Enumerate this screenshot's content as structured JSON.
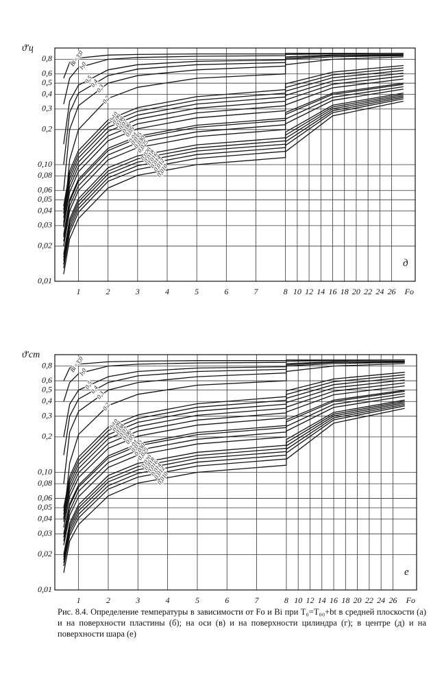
{
  "chart_data": [
    {
      "type": "line",
      "ylabel": "ϑ'ц",
      "xlabel": "Fo",
      "panel": "д",
      "yscale": "log",
      "grid": true,
      "color": "#111111",
      "xlim": [
        0.2,
        30
      ],
      "ylim": [
        0.01,
        1
      ],
      "xticks": [
        1,
        2,
        3,
        4,
        5,
        6,
        7,
        8,
        10,
        12,
        14,
        16,
        18,
        20,
        22,
        24,
        26
      ],
      "yticks": [
        {
          "value": 0.01,
          "label": "0,01"
        },
        {
          "value": 0.02,
          "label": "0,02"
        },
        {
          "value": 0.03,
          "label": "0,03"
        },
        {
          "value": 0.04,
          "label": "0,04"
        },
        {
          "value": 0.05,
          "label": "0,05"
        },
        {
          "value": 0.06,
          "label": "0,06"
        },
        {
          "value": 0.08,
          "label": "0,08"
        },
        {
          "value": 0.1,
          "label": "0,10"
        },
        {
          "value": 0.2,
          "label": "0,2"
        },
        {
          "value": 0.3,
          "label": "0,3"
        },
        {
          "value": 0.4,
          "label": "0,4"
        },
        {
          "value": 0.5,
          "label": "0,5"
        },
        {
          "value": 0.6,
          "label": "0,6"
        },
        {
          "value": 0.8,
          "label": "0,8"
        }
      ],
      "x": [
        0.5,
        0.7,
        1,
        2,
        3,
        5,
        8,
        8,
        16,
        28
      ],
      "series": [
        {
          "name": "Bi=3,0",
          "values": [
            0.55,
            0.75,
            0.82,
            0.87,
            0.88,
            0.89,
            0.89,
            0.9,
            0.9,
            0.9
          ]
        },
        {
          "name": "1,0",
          "values": [
            0.33,
            0.55,
            0.68,
            0.8,
            0.83,
            0.85,
            0.86,
            0.88,
            0.89,
            0.9
          ]
        },
        {
          "name": "0,5",
          "values": [
            0.15,
            0.35,
            0.48,
            0.65,
            0.72,
            0.77,
            0.79,
            0.84,
            0.87,
            0.88
          ]
        },
        {
          "name": "0,4",
          "values": [
            0.1,
            0.28,
            0.41,
            0.58,
            0.66,
            0.72,
            0.75,
            0.82,
            0.86,
            0.87
          ]
        },
        {
          "name": "0,3",
          "values": [
            0.06,
            0.2,
            0.32,
            0.5,
            0.58,
            0.65,
            0.7,
            0.8,
            0.84,
            0.86
          ]
        },
        {
          "name": "0,2",
          "values": [
            0.03,
            0.11,
            0.2,
            0.37,
            0.46,
            0.55,
            0.6,
            0.72,
            0.8,
            0.84
          ]
        },
        {
          "name": "0,10",
          "values": [
            0.044,
            0.088,
            0.132,
            0.242,
            0.308,
            0.383,
            0.44,
            0.493,
            0.622,
            0.708
          ]
        },
        {
          "name": "0,09",
          "values": [
            0.041,
            0.082,
            0.123,
            0.226,
            0.287,
            0.357,
            0.41,
            0.459,
            0.589,
            0.675
          ]
        },
        {
          "name": "0,08",
          "values": [
            0.038,
            0.076,
            0.114,
            0.209,
            0.266,
            0.331,
            0.38,
            0.426,
            0.556,
            0.642
          ]
        },
        {
          "name": "0,07",
          "values": [
            0.035,
            0.07,
            0.105,
            0.193,
            0.245,
            0.305,
            0.35,
            0.392,
            0.522,
            0.609
          ]
        },
        {
          "name": "0,06",
          "values": [
            0.032,
            0.064,
            0.096,
            0.176,
            0.224,
            0.278,
            0.32,
            0.358,
            0.489,
            0.576
          ]
        },
        {
          "name": "0,05",
          "values": [
            0.029,
            0.058,
            0.087,
            0.16,
            0.203,
            0.252,
            0.29,
            0.325,
            0.456,
            0.543
          ]
        },
        {
          "name": "0,04",
          "values": [
            0.025,
            0.05,
            0.075,
            0.138,
            0.175,
            0.218,
            0.25,
            0.28,
            0.411,
            0.499
          ]
        },
        {
          "name": "0,035",
          "values": [
            0.024,
            0.048,
            0.072,
            0.132,
            0.168,
            0.209,
            0.24,
            0.269,
            0.4,
            0.488
          ]
        },
        {
          "name": "0,030",
          "values": [
            0.022,
            0.044,
            0.066,
            0.121,
            0.154,
            0.191,
            0.22,
            0.246,
            0.378,
            0.466
          ]
        },
        {
          "name": "0,025",
          "values": [
            0.02,
            0.04,
            0.06,
            0.11,
            0.14,
            0.174,
            0.2,
            0.224,
            0.356,
            0.444
          ]
        },
        {
          "name": "0,020",
          "values": [
            0.017,
            0.034,
            0.051,
            0.094,
            0.119,
            0.148,
            0.17,
            0.19,
            0.323,
            0.411
          ]
        },
        {
          "name": "0,018",
          "values": [
            0.016,
            0.032,
            0.048,
            0.088,
            0.112,
            0.139,
            0.16,
            0.179,
            0.312,
            0.4
          ]
        },
        {
          "name": "0,016",
          "values": [
            0.015,
            0.03,
            0.045,
            0.083,
            0.105,
            0.131,
            0.15,
            0.168,
            0.301,
            0.389
          ]
        },
        {
          "name": "0,014",
          "values": [
            0.014,
            0.028,
            0.042,
            0.077,
            0.098,
            0.122,
            0.14,
            0.157,
            0.29,
            0.378
          ]
        },
        {
          "name": "0,012",
          "values": [
            0.013,
            0.026,
            0.039,
            0.072,
            0.091,
            0.113,
            0.13,
            0.146,
            0.279,
            0.367
          ]
        },
        {
          "name": "0,010",
          "values": [
            0.0115,
            0.023,
            0.0345,
            0.063,
            0.081,
            0.1,
            0.115,
            0.129,
            0.262,
            0.35
          ]
        }
      ]
    },
    {
      "type": "line",
      "ylabel": "ϑ'ст",
      "xlabel": "Fo",
      "panel": "е",
      "yscale": "log",
      "grid": true,
      "color": "#111111",
      "xlim": [
        0.2,
        30
      ],
      "ylim": [
        0.01,
        1
      ],
      "xticks": [
        1,
        2,
        3,
        4,
        5,
        6,
        7,
        8,
        10,
        12,
        14,
        16,
        18,
        20,
        22,
        24,
        26
      ],
      "yticks": [
        {
          "value": 0.01,
          "label": "0,01"
        },
        {
          "value": 0.02,
          "label": "0,02"
        },
        {
          "value": 0.03,
          "label": "0,03"
        },
        {
          "value": 0.04,
          "label": "0,04"
        },
        {
          "value": 0.05,
          "label": "0,05"
        },
        {
          "value": 0.06,
          "label": "0,06"
        },
        {
          "value": 0.08,
          "label": "0,08"
        },
        {
          "value": 0.1,
          "label": "0,10"
        },
        {
          "value": 0.2,
          "label": "0,2"
        },
        {
          "value": 0.3,
          "label": "0,3"
        },
        {
          "value": 0.4,
          "label": "0,4"
        },
        {
          "value": 0.5,
          "label": "0,5"
        },
        {
          "value": 0.6,
          "label": "0,6"
        },
        {
          "value": 0.8,
          "label": "0,8"
        }
      ],
      "x": [
        0.5,
        0.7,
        1,
        2,
        3,
        5,
        8,
        8,
        16,
        28
      ],
      "series": [
        {
          "name": "Bi=3,0",
          "values": [
            0.6,
            0.77,
            0.83,
            0.87,
            0.88,
            0.89,
            0.89,
            0.9,
            0.9,
            0.9
          ]
        },
        {
          "name": "1,0",
          "values": [
            0.4,
            0.58,
            0.69,
            0.8,
            0.83,
            0.85,
            0.86,
            0.88,
            0.89,
            0.9
          ]
        },
        {
          "name": "0,5",
          "values": [
            0.2,
            0.38,
            0.5,
            0.65,
            0.72,
            0.77,
            0.79,
            0.84,
            0.87,
            0.88
          ]
        },
        {
          "name": "0,4",
          "values": [
            0.14,
            0.3,
            0.42,
            0.58,
            0.66,
            0.72,
            0.75,
            0.82,
            0.86,
            0.87
          ]
        },
        {
          "name": "0,3",
          "values": [
            0.08,
            0.22,
            0.33,
            0.5,
            0.58,
            0.65,
            0.7,
            0.8,
            0.84,
            0.86
          ]
        },
        {
          "name": "0,2",
          "values": [
            0.04,
            0.12,
            0.21,
            0.37,
            0.46,
            0.55,
            0.6,
            0.72,
            0.8,
            0.84
          ]
        },
        {
          "name": "0,10",
          "values": [
            0.05,
            0.092,
            0.135,
            0.242,
            0.308,
            0.383,
            0.44,
            0.493,
            0.622,
            0.708
          ]
        },
        {
          "name": "0,09",
          "values": [
            0.047,
            0.086,
            0.126,
            0.226,
            0.287,
            0.357,
            0.41,
            0.459,
            0.589,
            0.675
          ]
        },
        {
          "name": "0,08",
          "values": [
            0.044,
            0.08,
            0.117,
            0.209,
            0.266,
            0.331,
            0.38,
            0.426,
            0.556,
            0.642
          ]
        },
        {
          "name": "0,07",
          "values": [
            0.041,
            0.074,
            0.108,
            0.193,
            0.245,
            0.305,
            0.35,
            0.392,
            0.522,
            0.609
          ]
        },
        {
          "name": "0,06",
          "values": [
            0.038,
            0.068,
            0.099,
            0.176,
            0.224,
            0.278,
            0.32,
            0.358,
            0.489,
            0.576
          ]
        },
        {
          "name": "0,05",
          "values": [
            0.034,
            0.062,
            0.09,
            0.16,
            0.203,
            0.252,
            0.29,
            0.325,
            0.456,
            0.543
          ]
        },
        {
          "name": "0,04",
          "values": [
            0.03,
            0.054,
            0.078,
            0.138,
            0.175,
            0.218,
            0.25,
            0.28,
            0.411,
            0.499
          ]
        },
        {
          "name": "0,035",
          "values": [
            0.028,
            0.052,
            0.075,
            0.132,
            0.168,
            0.209,
            0.24,
            0.269,
            0.4,
            0.488
          ]
        },
        {
          "name": "0,030",
          "values": [
            0.026,
            0.047,
            0.069,
            0.121,
            0.154,
            0.191,
            0.22,
            0.246,
            0.378,
            0.466
          ]
        },
        {
          "name": "0,025",
          "values": [
            0.024,
            0.043,
            0.062,
            0.11,
            0.14,
            0.174,
            0.2,
            0.224,
            0.356,
            0.444
          ]
        },
        {
          "name": "0,020",
          "values": [
            0.02,
            0.037,
            0.053,
            0.094,
            0.119,
            0.148,
            0.17,
            0.19,
            0.323,
            0.411
          ]
        },
        {
          "name": "0,018",
          "values": [
            0.019,
            0.035,
            0.05,
            0.088,
            0.112,
            0.139,
            0.16,
            0.179,
            0.312,
            0.4
          ]
        },
        {
          "name": "0,016",
          "values": [
            0.018,
            0.033,
            0.047,
            0.083,
            0.105,
            0.131,
            0.15,
            0.168,
            0.301,
            0.389
          ]
        },
        {
          "name": "0,014",
          "values": [
            0.017,
            0.031,
            0.044,
            0.077,
            0.098,
            0.122,
            0.14,
            0.157,
            0.29,
            0.378
          ]
        },
        {
          "name": "0,012",
          "values": [
            0.016,
            0.029,
            0.041,
            0.072,
            0.091,
            0.113,
            0.13,
            0.146,
            0.279,
            0.367
          ]
        },
        {
          "name": "0,010",
          "values": [
            0.014,
            0.026,
            0.036,
            0.063,
            0.081,
            0.1,
            0.115,
            0.129,
            0.262,
            0.35
          ]
        }
      ]
    }
  ],
  "caption": "Рис. 8.4. Определение температуры в зависимости от Fo и Bi при T₀=T₀₀+bt в средней плоскости (а) и на поверхности пластины (б); на оси (в) и на поверхности цилиндра (г); в центре (д) и на поверхности шара (е)"
}
